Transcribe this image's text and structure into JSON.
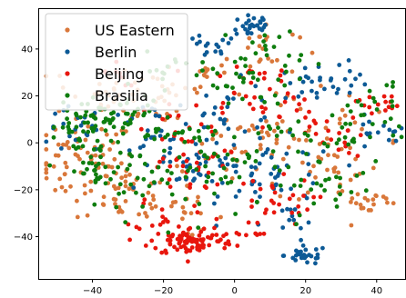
{
  "chart_data": {
    "type": "scatter",
    "title": "",
    "xlabel": "",
    "ylabel": "",
    "xlim": [
      -55,
      48
    ],
    "ylim": [
      -58,
      57
    ],
    "xticks": [
      -40,
      -20,
      0,
      20,
      40
    ],
    "yticks": [
      -40,
      -20,
      0,
      20,
      40
    ],
    "xtick_labels": [
      "−40",
      "−20",
      "0",
      "20",
      "40"
    ],
    "ytick_labels": [
      "−40",
      "−20",
      "0",
      "20",
      "40"
    ],
    "grid": false,
    "legend_position": "top-left",
    "series": [
      {
        "name": "US Eastern",
        "color": "#d9773a",
        "clusters": [
          [
            -42,
            -8,
            7,
            9,
            70
          ],
          [
            -30,
            -22,
            6,
            6,
            40
          ],
          [
            -40,
            22,
            6,
            6,
            25
          ],
          [
            -20,
            20,
            8,
            7,
            30
          ],
          [
            -8,
            30,
            3,
            2,
            12
          ],
          [
            2,
            -2,
            12,
            10,
            40
          ],
          [
            8,
            40,
            5,
            6,
            20
          ],
          [
            18,
            8,
            7,
            7,
            25
          ],
          [
            38,
            -25,
            5,
            3,
            20
          ],
          [
            35,
            0,
            6,
            6,
            15
          ],
          [
            -15,
            -30,
            6,
            5,
            15
          ],
          [
            25,
            -15,
            5,
            5,
            15
          ]
        ]
      },
      {
        "name": "Berlin",
        "color": "#0d5a96",
        "clusters": [
          [
            5,
            50,
            3,
            3,
            30
          ],
          [
            20,
            -48,
            3,
            2,
            28
          ],
          [
            -8,
            40,
            4,
            3,
            15
          ],
          [
            -45,
            5,
            4,
            5,
            20
          ],
          [
            13,
            -15,
            8,
            8,
            40
          ],
          [
            -3,
            5,
            8,
            10,
            50
          ],
          [
            -25,
            5,
            6,
            6,
            25
          ],
          [
            40,
            3,
            4,
            4,
            15
          ],
          [
            30,
            28,
            4,
            3,
            12
          ],
          [
            20,
            25,
            6,
            5,
            20
          ],
          [
            15,
            -35,
            4,
            4,
            10
          ],
          [
            -10,
            -15,
            6,
            6,
            20
          ]
        ]
      },
      {
        "name": "Beijing",
        "color": "#e8160d",
        "clusters": [
          [
            -12,
            -42,
            6,
            3,
            90
          ],
          [
            -20,
            -30,
            4,
            4,
            15
          ],
          [
            5,
            22,
            8,
            8,
            35
          ],
          [
            10,
            -25,
            6,
            5,
            25
          ],
          [
            -35,
            30,
            4,
            3,
            8
          ],
          [
            -12,
            -10,
            5,
            6,
            30
          ],
          [
            40,
            17,
            3,
            2,
            15
          ],
          [
            3,
            -38,
            4,
            4,
            12
          ],
          [
            30,
            0,
            4,
            5,
            15
          ],
          [
            22,
            10,
            4,
            4,
            10
          ],
          [
            -15,
            5,
            5,
            6,
            15
          ]
        ]
      },
      {
        "name": "Brasilia",
        "color": "#0e7d0e",
        "clusters": [
          [
            -33,
            10,
            8,
            6,
            70
          ],
          [
            -45,
            5,
            3,
            4,
            20
          ],
          [
            -40,
            -12,
            4,
            6,
            25
          ],
          [
            -28,
            -15,
            6,
            6,
            25
          ],
          [
            -5,
            -10,
            10,
            10,
            60
          ],
          [
            8,
            40,
            6,
            6,
            20
          ],
          [
            5,
            25,
            8,
            5,
            25
          ],
          [
            25,
            -20,
            6,
            5,
            20
          ],
          [
            35,
            5,
            6,
            8,
            25
          ],
          [
            40,
            20,
            4,
            4,
            10
          ],
          [
            -18,
            30,
            6,
            4,
            15
          ],
          [
            18,
            -2,
            8,
            8,
            25
          ]
        ]
      }
    ]
  }
}
